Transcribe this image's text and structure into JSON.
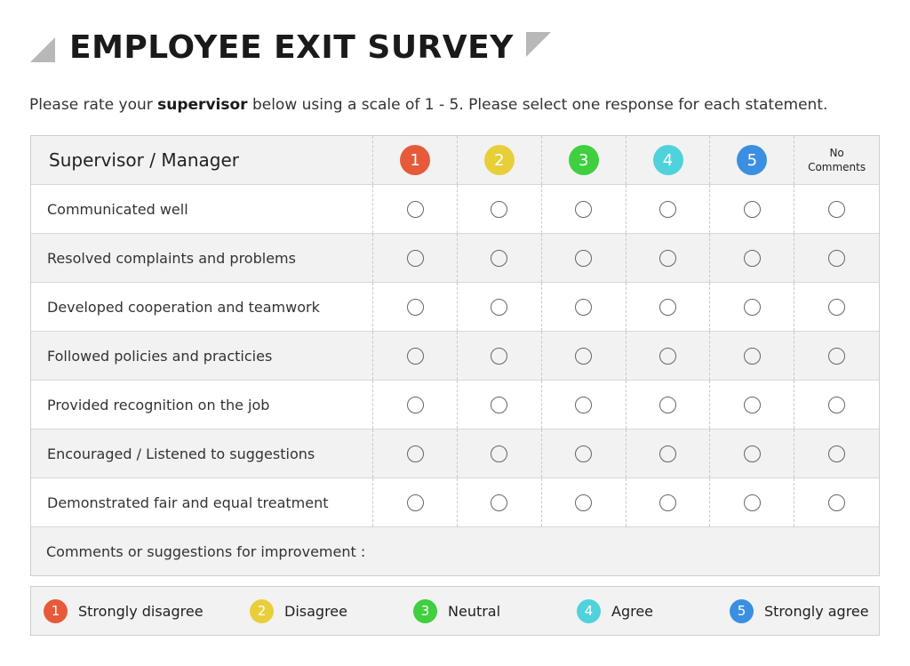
{
  "title": "EMPLOYEE EXIT SURVEY",
  "intro": {
    "before": "Please rate your ",
    "bold": "supervisor",
    "after": " below using a scale of 1 - 5. Please select one response for each statement."
  },
  "table": {
    "header_label": "Supervisor / Manager",
    "scale": [
      {
        "num": "1",
        "color": "#e65a3a"
      },
      {
        "num": "2",
        "color": "#e8cf3a"
      },
      {
        "num": "3",
        "color": "#3fcf3f"
      },
      {
        "num": "4",
        "color": "#4fd2dc"
      },
      {
        "num": "5",
        "color": "#3b8fe2"
      }
    ],
    "no_comments_line1": "No",
    "no_comments_line2": "Comments",
    "statements": [
      "Communicated well",
      "Resolved complaints and problems",
      "Developed cooperation and teamwork",
      "Followed policies and practicies",
      "Provided recognition on the job",
      "Encouraged  /  Listened to suggestions",
      "Demonstrated fair and equal treatment"
    ],
    "comments_label": "Comments or suggestions for improvement :"
  },
  "legend": [
    {
      "num": "1",
      "label": "Strongly disagree",
      "color": "#e65a3a"
    },
    {
      "num": "2",
      "label": "Disagree",
      "color": "#e8cf3a"
    },
    {
      "num": "3",
      "label": "Neutral",
      "color": "#3fcf3f"
    },
    {
      "num": "4",
      "label": "Agree",
      "color": "#4fd2dc"
    },
    {
      "num": "5",
      "label": "Strongly agree",
      "color": "#3b8fe2"
    }
  ]
}
